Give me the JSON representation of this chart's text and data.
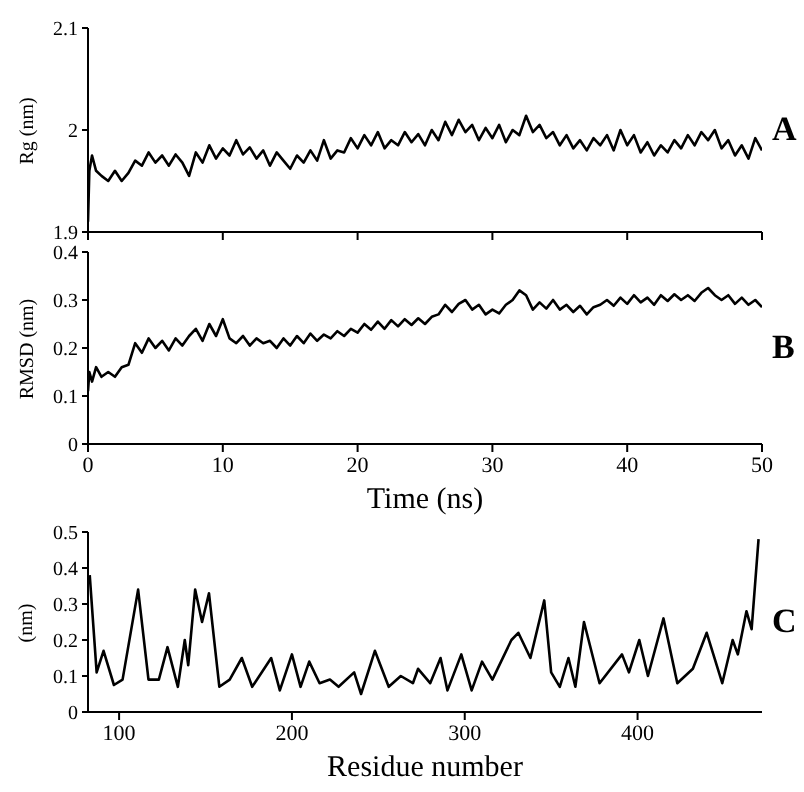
{
  "chart_data": [
    {
      "type": "line",
      "ylabel": "Rg (nm)",
      "annotations": [
        "A"
      ],
      "tick_labels": "y",
      "xlim": [
        0,
        50
      ],
      "xticks": [
        {
          "value": 0,
          "label": null
        },
        {
          "value": 10,
          "label": null
        },
        {
          "value": 20,
          "label": null
        },
        {
          "value": 30,
          "label": null
        },
        {
          "value": 40,
          "label": null
        },
        {
          "value": 50,
          "label": null
        }
      ],
      "ylim": [
        1.9,
        2.1
      ],
      "yticks": [
        1.9,
        2,
        2.1
      ],
      "marker": "none",
      "x": [
        0,
        0.1,
        0.3,
        0.6,
        1,
        1.5,
        2,
        2.5,
        3,
        3.5,
        4,
        4.5,
        5,
        5.5,
        6,
        6.5,
        7,
        7.5,
        8,
        8.5,
        9,
        9.5,
        10,
        10.5,
        11,
        11.5,
        12,
        12.5,
        13,
        13.5,
        14,
        14.5,
        15,
        15.5,
        16,
        16.5,
        17,
        17.5,
        18,
        18.5,
        19,
        19.5,
        20,
        20.5,
        21,
        21.5,
        22,
        22.5,
        23,
        23.5,
        24,
        24.5,
        25,
        25.5,
        26,
        26.5,
        27,
        27.5,
        28,
        28.5,
        29,
        29.5,
        30,
        30.5,
        31,
        31.5,
        32,
        32.5,
        33,
        33.5,
        34,
        34.5,
        35,
        35.5,
        36,
        36.5,
        37,
        37.5,
        38,
        38.5,
        39,
        39.5,
        40,
        40.5,
        41,
        41.5,
        42,
        42.5,
        43,
        43.5,
        44,
        44.5,
        45,
        45.5,
        46,
        46.5,
        47,
        47.5,
        48,
        48.5,
        49,
        49.5,
        50
      ],
      "series": [
        {
          "color": "#000000",
          "values": [
            1.91,
            1.96,
            1.975,
            1.96,
            1.955,
            1.95,
            1.96,
            1.95,
            1.958,
            1.97,
            1.965,
            1.978,
            1.968,
            1.975,
            1.965,
            1.976,
            1.968,
            1.955,
            1.978,
            1.968,
            1.985,
            1.972,
            1.982,
            1.975,
            1.99,
            1.976,
            1.983,
            1.972,
            1.98,
            1.965,
            1.978,
            1.97,
            1.962,
            1.975,
            1.968,
            1.98,
            1.97,
            1.99,
            1.972,
            1.98,
            1.978,
            1.992,
            1.982,
            1.995,
            1.985,
            1.998,
            1.982,
            1.99,
            1.985,
            1.998,
            1.988,
            1.996,
            1.985,
            2.0,
            1.99,
            2.008,
            1.995,
            2.01,
            1.998,
            2.005,
            1.99,
            2.002,
            1.992,
            2.005,
            1.988,
            2.0,
            1.995,
            2.014,
            1.998,
            2.005,
            1.992,
            1.998,
            1.985,
            1.995,
            1.982,
            1.99,
            1.98,
            1.992,
            1.985,
            1.995,
            1.98,
            2.0,
            1.985,
            1.995,
            1.978,
            1.988,
            1.975,
            1.985,
            1.978,
            1.99,
            1.982,
            1.995,
            1.985,
            1.998,
            1.99,
            2.0,
            1.982,
            1.99,
            1.975,
            1.985,
            1.972,
            1.992,
            1.98
          ]
        }
      ]
    },
    {
      "type": "line",
      "ylabel": "RMSD (nm)",
      "xlabel": "Time (ns)",
      "annotations": [
        "B"
      ],
      "xlim": [
        0,
        50
      ],
      "xticks": [
        0,
        10,
        20,
        30,
        40,
        50
      ],
      "ylim": [
        0,
        0.4
      ],
      "yticks": [
        0,
        0.1,
        0.2,
        0.3,
        0.4
      ],
      "marker": "none",
      "x": [
        0,
        0.1,
        0.3,
        0.6,
        1,
        1.5,
        2,
        2.5,
        3,
        3.5,
        4,
        4.5,
        5,
        5.5,
        6,
        6.5,
        7,
        7.5,
        8,
        8.5,
        9,
        9.5,
        10,
        10.5,
        11,
        11.5,
        12,
        12.5,
        13,
        13.5,
        14,
        14.5,
        15,
        15.5,
        16,
        16.5,
        17,
        17.5,
        18,
        18.5,
        19,
        19.5,
        20,
        20.5,
        21,
        21.5,
        22,
        22.5,
        23,
        23.5,
        24,
        24.5,
        25,
        25.5,
        26,
        26.5,
        27,
        27.5,
        28,
        28.5,
        29,
        29.5,
        30,
        30.5,
        31,
        31.5,
        32,
        32.5,
        33,
        33.5,
        34,
        34.5,
        35,
        35.5,
        36,
        36.5,
        37,
        37.5,
        38,
        38.5,
        39,
        39.5,
        40,
        40.5,
        41,
        41.5,
        42,
        42.5,
        43,
        43.5,
        44,
        44.5,
        45,
        45.5,
        46,
        46.5,
        47,
        47.5,
        48,
        48.5,
        49,
        49.5,
        50
      ],
      "series": [
        {
          "color": "#000000",
          "values": [
            0.11,
            0.15,
            0.13,
            0.16,
            0.14,
            0.15,
            0.14,
            0.16,
            0.165,
            0.21,
            0.19,
            0.22,
            0.2,
            0.215,
            0.195,
            0.22,
            0.205,
            0.225,
            0.24,
            0.215,
            0.25,
            0.225,
            0.26,
            0.22,
            0.21,
            0.225,
            0.205,
            0.22,
            0.21,
            0.215,
            0.2,
            0.22,
            0.205,
            0.225,
            0.21,
            0.23,
            0.215,
            0.228,
            0.22,
            0.235,
            0.225,
            0.24,
            0.232,
            0.25,
            0.238,
            0.255,
            0.24,
            0.258,
            0.245,
            0.26,
            0.248,
            0.262,
            0.25,
            0.265,
            0.27,
            0.29,
            0.275,
            0.292,
            0.3,
            0.28,
            0.29,
            0.27,
            0.28,
            0.272,
            0.29,
            0.3,
            0.32,
            0.31,
            0.28,
            0.295,
            0.282,
            0.3,
            0.28,
            0.29,
            0.275,
            0.288,
            0.27,
            0.285,
            0.29,
            0.3,
            0.288,
            0.305,
            0.292,
            0.31,
            0.295,
            0.305,
            0.29,
            0.31,
            0.298,
            0.312,
            0.3,
            0.31,
            0.298,
            0.315,
            0.325,
            0.31,
            0.3,
            0.31,
            0.292,
            0.305,
            0.29,
            0.3,
            0.285
          ]
        }
      ]
    },
    {
      "type": "line",
      "ylabel": "(nm)",
      "xlabel": "Residue number",
      "annotations": [
        "C"
      ],
      "xlim": [
        82,
        472
      ],
      "xticks": [
        100,
        200,
        300,
        400
      ],
      "ylim": [
        0,
        0.5
      ],
      "yticks": [
        0,
        0.1,
        0.2,
        0.3,
        0.4,
        0.5
      ],
      "marker": "none",
      "x": [
        83,
        87,
        91,
        97,
        102,
        111,
        117,
        123,
        128,
        134,
        138,
        140,
        144,
        148,
        152,
        158,
        164,
        171,
        177,
        188,
        193,
        200,
        205,
        210,
        216,
        222,
        227,
        236,
        240,
        248,
        256,
        263,
        270,
        273,
        280,
        286,
        290,
        298,
        304,
        310,
        316,
        321,
        327,
        331,
        338,
        346,
        350,
        355,
        360,
        364,
        369,
        378,
        391,
        395,
        401,
        406,
        415,
        423,
        432,
        440,
        449,
        455,
        458,
        463,
        466,
        470
      ],
      "series": [
        {
          "color": "#000000",
          "values": [
            0.38,
            0.11,
            0.17,
            0.075,
            0.09,
            0.34,
            0.09,
            0.09,
            0.18,
            0.07,
            0.2,
            0.13,
            0.34,
            0.25,
            0.33,
            0.07,
            0.09,
            0.15,
            0.07,
            0.15,
            0.06,
            0.16,
            0.07,
            0.14,
            0.08,
            0.09,
            0.07,
            0.11,
            0.05,
            0.17,
            0.07,
            0.1,
            0.08,
            0.12,
            0.08,
            0.15,
            0.06,
            0.16,
            0.06,
            0.14,
            0.09,
            0.14,
            0.2,
            0.22,
            0.15,
            0.31,
            0.11,
            0.07,
            0.15,
            0.07,
            0.25,
            0.08,
            0.16,
            0.11,
            0.2,
            0.1,
            0.26,
            0.08,
            0.12,
            0.22,
            0.08,
            0.2,
            0.16,
            0.28,
            0.23,
            0.48
          ]
        }
      ]
    }
  ]
}
